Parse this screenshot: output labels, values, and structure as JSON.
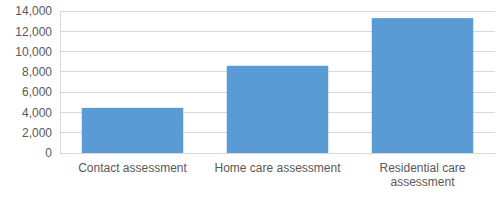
{
  "chart_data": {
    "type": "bar",
    "categories": [
      "Contact assessment",
      "Home care assessment",
      "Residential care assessment"
    ],
    "values": [
      4450,
      8600,
      13300
    ],
    "color": "#5b9bd5",
    "ylim": [
      0,
      14000
    ],
    "yticks": [
      0,
      {
        "value": 2000,
        "label": "2,000"
      },
      {
        "value": 4000,
        "label": "4,000"
      },
      {
        "value": 6000,
        "label": "6,000"
      },
      {
        "value": 8000,
        "label": "8,000"
      },
      {
        "value": 10000,
        "label": "10,000"
      },
      {
        "value": 12000,
        "label": "12,000"
      },
      {
        "value": 14000,
        "label": "14,000"
      }
    ],
    "grid": true
  }
}
